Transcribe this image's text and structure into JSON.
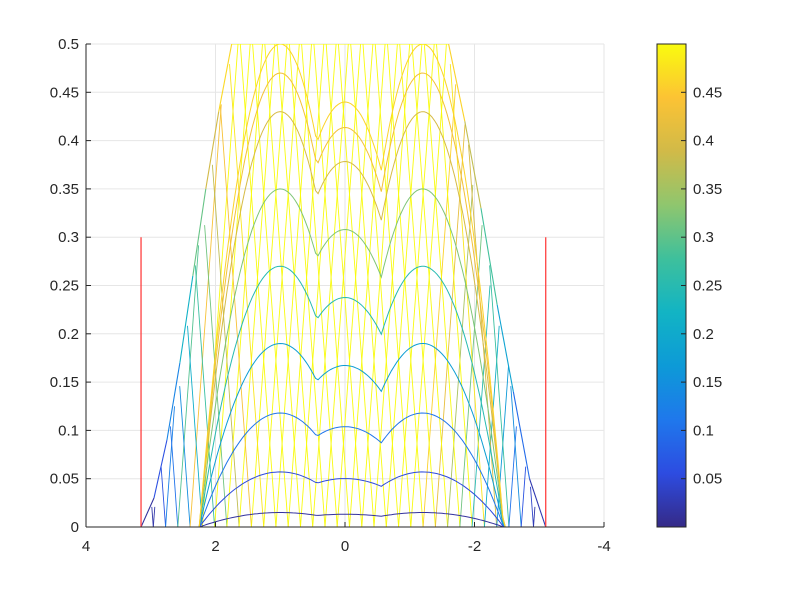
{
  "chart_data": {
    "type": "surface-mesh",
    "title": "",
    "xlabel": "",
    "ylabel": "",
    "x_direction": "reversed",
    "xlim": [
      -4,
      4
    ],
    "ylim": [
      0,
      0.5
    ],
    "grid": true,
    "x_ticks": [
      {
        "value": 4,
        "label": "4"
      },
      {
        "value": 2,
        "label": "2"
      },
      {
        "value": 0,
        "label": "0"
      },
      {
        "value": -2,
        "label": "-2"
      },
      {
        "value": -4,
        "label": "-4"
      }
    ],
    "y_ticks": [
      {
        "value": 0,
        "label": "0"
      },
      {
        "value": 0.05,
        "label": "0.05"
      },
      {
        "value": 0.1,
        "label": "0.1"
      },
      {
        "value": 0.15,
        "label": "0.15"
      },
      {
        "value": 0.2,
        "label": "0.2"
      },
      {
        "value": 0.25,
        "label": "0.25"
      },
      {
        "value": 0.3,
        "label": "0.3"
      },
      {
        "value": 0.35,
        "label": "0.35"
      },
      {
        "value": 0.4,
        "label": "0.4"
      },
      {
        "value": 0.45,
        "label": "0.45"
      },
      {
        "value": 0.5,
        "label": "0.5"
      }
    ],
    "surface": {
      "top_clip": 0.5,
      "base_x": [
        3.15,
        -3.1
      ],
      "top_shoulder_x": [
        1.75,
        -1.6
      ],
      "profile_points": [
        {
          "x": 3.15,
          "y": 0.0
        },
        {
          "x": 2.95,
          "y": 0.03
        },
        {
          "x": 2.75,
          "y": 0.09
        },
        {
          "x": 2.55,
          "y": 0.17
        },
        {
          "x": 2.35,
          "y": 0.26
        },
        {
          "x": 2.15,
          "y": 0.35
        },
        {
          "x": 1.95,
          "y": 0.43
        },
        {
          "x": 1.75,
          "y": 0.5
        },
        {
          "x": -1.6,
          "y": 0.5
        },
        {
          "x": -1.85,
          "y": 0.42
        },
        {
          "x": -2.1,
          "y": 0.33
        },
        {
          "x": -2.35,
          "y": 0.23
        },
        {
          "x": -2.6,
          "y": 0.14
        },
        {
          "x": -2.85,
          "y": 0.05
        },
        {
          "x": -3.1,
          "y": 0.0
        }
      ],
      "arch_peaks": [
        0.015,
        0.057,
        0.118,
        0.19,
        0.27,
        0.35,
        0.43,
        0.47,
        0.5
      ],
      "arch_centers_x": [
        1.0,
        -1.2
      ],
      "arch_halfwidth": 1.25
    },
    "reference_lines": [
      {
        "x": 3.15,
        "y_from": 0,
        "y_to": 0.3,
        "color": "#ff4040"
      },
      {
        "x": -3.1,
        "y_from": 0,
        "y_to": 0.3,
        "color": "#ff4040"
      }
    ],
    "colorbar": {
      "colormap": "parula",
      "range": [
        0,
        0.5
      ],
      "ticks": [
        {
          "value": 0.05,
          "label": "0.05"
        },
        {
          "value": 0.1,
          "label": "0.1"
        },
        {
          "value": 0.15,
          "label": "0.15"
        },
        {
          "value": 0.2,
          "label": "0.2"
        },
        {
          "value": 0.25,
          "label": "0.25"
        },
        {
          "value": 0.3,
          "label": "0.3"
        },
        {
          "value": 0.35,
          "label": "0.35"
        },
        {
          "value": 0.4,
          "label": "0.4"
        },
        {
          "value": 0.45,
          "label": "0.45"
        }
      ],
      "colors": [
        "#352a87",
        "#2d4ce1",
        "#1f78ec",
        "#0d9ad7",
        "#12b4c4",
        "#3ec09c",
        "#8fc66e",
        "#d1ba48",
        "#fcc334",
        "#f9fb0e"
      ]
    },
    "colors": {
      "axis": "#262626",
      "grid": "#e6e6e6",
      "background": "#ffffff"
    }
  }
}
